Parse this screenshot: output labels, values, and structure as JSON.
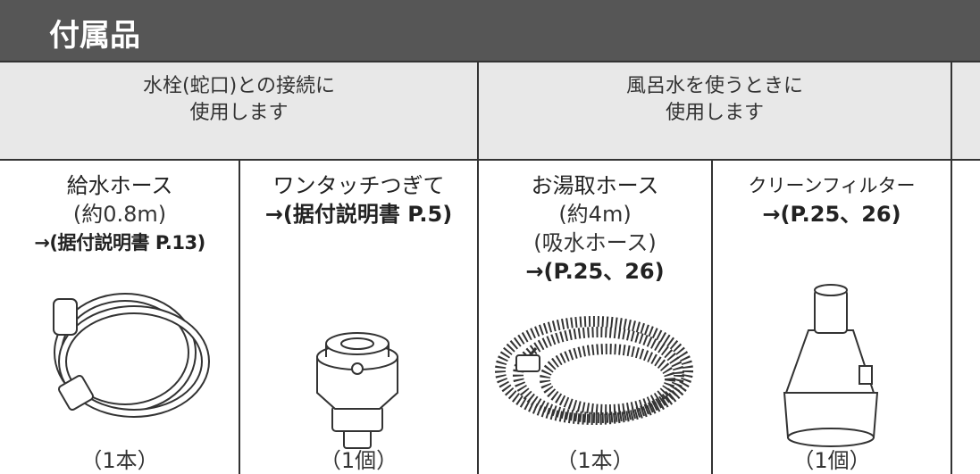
{
  "header": {
    "title": "付属品"
  },
  "groups": [
    {
      "lines": [
        "水栓(蛇口)との接続に",
        "使用します"
      ]
    },
    {
      "lines": [
        "風呂水を使うときに",
        "使用します"
      ]
    }
  ],
  "items": [
    {
      "name": "給水ホース",
      "details": [
        "(約0.8m)"
      ],
      "reference": "→(据付説明書 P.13)",
      "quantity": "（1本）"
    },
    {
      "name": "ワンタッチつぎて",
      "details": [],
      "reference": "→(据付説明書 P.5)",
      "quantity": "（1個）"
    },
    {
      "name": "お湯取ホース",
      "details": [
        "(約4m)",
        "(吸水ホース)"
      ],
      "reference": "→(P.25、26)",
      "quantity": "（1本）"
    },
    {
      "name": "クリーンフィルター",
      "details": [],
      "reference": "→(P.25、26)",
      "quantity": "（1個）"
    }
  ]
}
